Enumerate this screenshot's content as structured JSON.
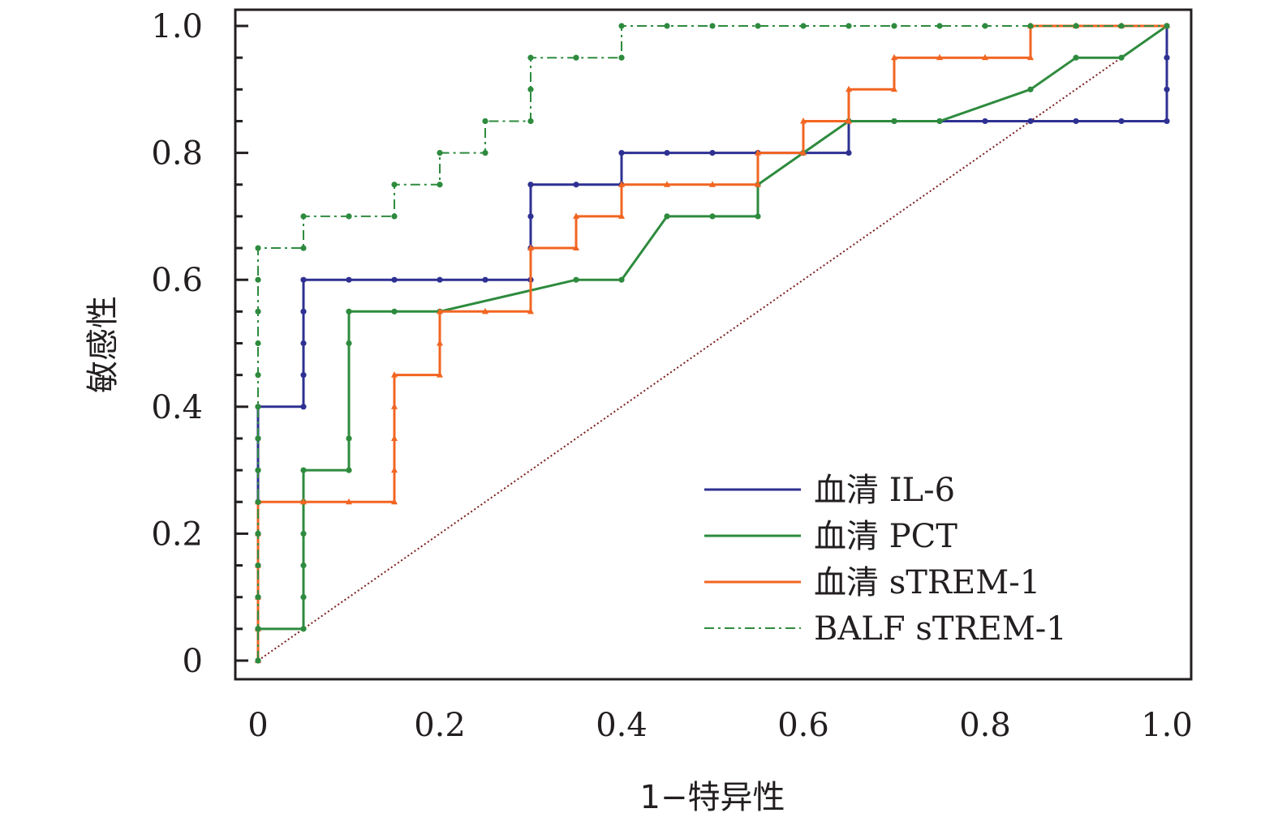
{
  "chart_data": {
    "type": "line",
    "xlabel": "1−特异性",
    "ylabel": "敏感性",
    "xlim": [
      0,
      1
    ],
    "ylim": [
      0,
      1
    ],
    "x_ticks": [
      "0",
      "0.2",
      "0.4",
      "0.6",
      "0.8",
      "1.0"
    ],
    "y_ticks": [
      "0",
      "0.2",
      "0.4",
      "0.6",
      "0.8",
      "1.0"
    ],
    "grid": false,
    "legend_position": "bottom-right",
    "reference_line": {
      "from": [
        0,
        0
      ],
      "to": [
        1,
        1
      ],
      "color": "#7a1c1c",
      "style": "dotted"
    },
    "series": [
      {
        "name": "血清 IL-6",
        "color": "#2e3192",
        "style": "solid",
        "marker": "circle",
        "points": [
          [
            0,
            0
          ],
          [
            0,
            0.05
          ],
          [
            0,
            0.1
          ],
          [
            0,
            0.15
          ],
          [
            0,
            0.2
          ],
          [
            0,
            0.25
          ],
          [
            0,
            0.3
          ],
          [
            0,
            0.35
          ],
          [
            0,
            0.4
          ],
          [
            0.05,
            0.4
          ],
          [
            0.05,
            0.45
          ],
          [
            0.05,
            0.5
          ],
          [
            0.05,
            0.55
          ],
          [
            0.05,
            0.6
          ],
          [
            0.1,
            0.6
          ],
          [
            0.15,
            0.6
          ],
          [
            0.2,
            0.6
          ],
          [
            0.25,
            0.6
          ],
          [
            0.3,
            0.6
          ],
          [
            0.3,
            0.65
          ],
          [
            0.3,
            0.7
          ],
          [
            0.3,
            0.75
          ],
          [
            0.35,
            0.75
          ],
          [
            0.4,
            0.75
          ],
          [
            0.4,
            0.8
          ],
          [
            0.45,
            0.8
          ],
          [
            0.5,
            0.8
          ],
          [
            0.55,
            0.8
          ],
          [
            0.6,
            0.8
          ],
          [
            0.65,
            0.8
          ],
          [
            0.65,
            0.85
          ],
          [
            0.7,
            0.85
          ],
          [
            0.75,
            0.85
          ],
          [
            0.8,
            0.85
          ],
          [
            0.85,
            0.85
          ],
          [
            0.9,
            0.85
          ],
          [
            0.95,
            0.85
          ],
          [
            1,
            0.85
          ],
          [
            1,
            0.9
          ],
          [
            1,
            0.95
          ],
          [
            1,
            1
          ]
        ]
      },
      {
        "name": "血清 PCT",
        "color": "#2e8b3e",
        "style": "solid",
        "marker": "circle",
        "points": [
          [
            0,
            0
          ],
          [
            0,
            0.05
          ],
          [
            0.05,
            0.05
          ],
          [
            0.05,
            0.1
          ],
          [
            0.05,
            0.15
          ],
          [
            0.05,
            0.2
          ],
          [
            0.05,
            0.25
          ],
          [
            0.05,
            0.3
          ],
          [
            0.1,
            0.3
          ],
          [
            0.1,
            0.35
          ],
          [
            0.1,
            0.5
          ],
          [
            0.1,
            0.55
          ],
          [
            0.15,
            0.55
          ],
          [
            0.2,
            0.55
          ],
          [
            0.35,
            0.6
          ],
          [
            0.4,
            0.6
          ],
          [
            0.45,
            0.7
          ],
          [
            0.5,
            0.7
          ],
          [
            0.55,
            0.7
          ],
          [
            0.55,
            0.75
          ],
          [
            0.6,
            0.8
          ],
          [
            0.65,
            0.85
          ],
          [
            0.7,
            0.85
          ],
          [
            0.75,
            0.85
          ],
          [
            0.85,
            0.9
          ],
          [
            0.9,
            0.95
          ],
          [
            0.95,
            0.95
          ],
          [
            1,
            1
          ]
        ]
      },
      {
        "name": "血清 sTREM-1",
        "color": "#f26522",
        "style": "solid",
        "marker": "triangle",
        "points": [
          [
            0,
            0
          ],
          [
            0,
            0.05
          ],
          [
            0,
            0.1
          ],
          [
            0,
            0.15
          ],
          [
            0,
            0.2
          ],
          [
            0,
            0.25
          ],
          [
            0.05,
            0.25
          ],
          [
            0.1,
            0.25
          ],
          [
            0.15,
            0.25
          ],
          [
            0.15,
            0.3
          ],
          [
            0.15,
            0.35
          ],
          [
            0.15,
            0.4
          ],
          [
            0.15,
            0.45
          ],
          [
            0.2,
            0.45
          ],
          [
            0.2,
            0.5
          ],
          [
            0.2,
            0.55
          ],
          [
            0.25,
            0.55
          ],
          [
            0.3,
            0.55
          ],
          [
            0.3,
            0.65
          ],
          [
            0.35,
            0.65
          ],
          [
            0.35,
            0.7
          ],
          [
            0.4,
            0.7
          ],
          [
            0.4,
            0.75
          ],
          [
            0.45,
            0.75
          ],
          [
            0.5,
            0.75
          ],
          [
            0.55,
            0.75
          ],
          [
            0.55,
            0.8
          ],
          [
            0.6,
            0.8
          ],
          [
            0.6,
            0.85
          ],
          [
            0.65,
            0.85
          ],
          [
            0.65,
            0.9
          ],
          [
            0.7,
            0.9
          ],
          [
            0.7,
            0.95
          ],
          [
            0.75,
            0.95
          ],
          [
            0.8,
            0.95
          ],
          [
            0.85,
            0.95
          ],
          [
            0.85,
            1
          ],
          [
            0.9,
            1
          ],
          [
            0.95,
            1
          ],
          [
            1,
            1
          ]
        ]
      },
      {
        "name": "BALF sTREM-1",
        "color": "#2e8b3e",
        "style": "dashdot",
        "marker": "circle",
        "points": [
          [
            0,
            0
          ],
          [
            0,
            0.05
          ],
          [
            0,
            0.1
          ],
          [
            0,
            0.15
          ],
          [
            0,
            0.2
          ],
          [
            0,
            0.25
          ],
          [
            0,
            0.3
          ],
          [
            0,
            0.35
          ],
          [
            0,
            0.4
          ],
          [
            0,
            0.45
          ],
          [
            0,
            0.5
          ],
          [
            0,
            0.55
          ],
          [
            0,
            0.6
          ],
          [
            0,
            0.65
          ],
          [
            0.05,
            0.65
          ],
          [
            0.05,
            0.7
          ],
          [
            0.1,
            0.7
          ],
          [
            0.15,
            0.7
          ],
          [
            0.15,
            0.75
          ],
          [
            0.2,
            0.75
          ],
          [
            0.2,
            0.8
          ],
          [
            0.25,
            0.8
          ],
          [
            0.25,
            0.85
          ],
          [
            0.3,
            0.85
          ],
          [
            0.3,
            0.9
          ],
          [
            0.3,
            0.95
          ],
          [
            0.35,
            0.95
          ],
          [
            0.4,
            0.95
          ],
          [
            0.4,
            1
          ],
          [
            0.45,
            1
          ],
          [
            0.5,
            1
          ],
          [
            0.55,
            1
          ],
          [
            0.6,
            1
          ],
          [
            0.65,
            1
          ],
          [
            0.7,
            1
          ],
          [
            0.75,
            1
          ],
          [
            0.8,
            1
          ],
          [
            0.85,
            1
          ],
          [
            0.9,
            1
          ],
          [
            0.95,
            1
          ],
          [
            1,
            1
          ]
        ]
      }
    ]
  }
}
